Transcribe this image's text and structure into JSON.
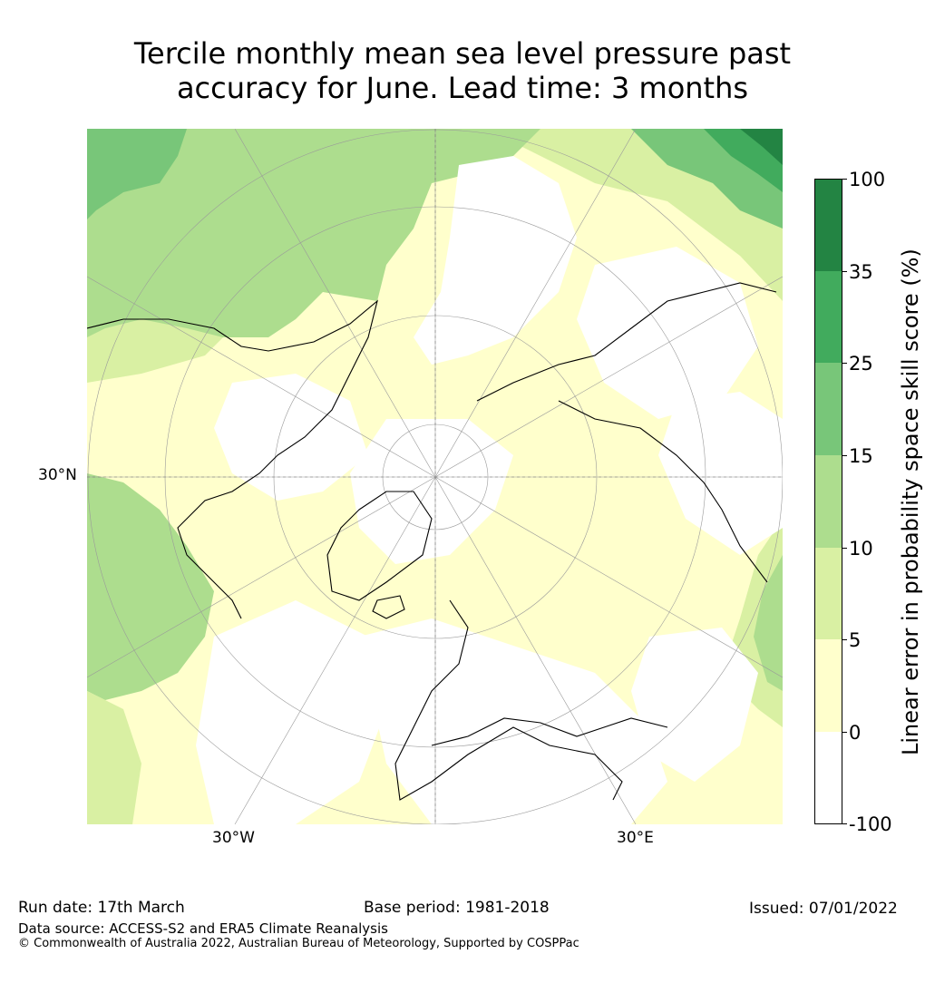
{
  "title": {
    "line1": "Tercile monthly mean sea level pressure past",
    "line2": "accuracy for June. Lead time: 3 months"
  },
  "map": {
    "projection": "north-polar-stereographic",
    "labels": {
      "lat_label": "30°N",
      "lon_west": "30°W",
      "lon_east": "30°E"
    }
  },
  "colorbar": {
    "label": "Linear error in probability space skill score (%)",
    "ticks": [
      "-100",
      "0",
      "5",
      "10",
      "15",
      "25",
      "35",
      "100"
    ],
    "bins": [
      {
        "range": "-100 to 0",
        "color": "#ffffff"
      },
      {
        "range": "0 to 5",
        "color": "#ffffcc"
      },
      {
        "range": "5 to 10",
        "color": "#d9f0a3"
      },
      {
        "range": "10 to 15",
        "color": "#addd8e"
      },
      {
        "range": "15 to 25",
        "color": "#78c679"
      },
      {
        "range": "25 to 35",
        "color": "#41ab5d"
      },
      {
        "range": "35 to 100",
        "color": "#238443"
      }
    ]
  },
  "footer": {
    "run_date": "Run date: 17th March",
    "base_period": "Base period: 1981-2018",
    "issued": "Issued: 07/01/2022",
    "data_source": "Data source: ACCESS-S2 and ERA5 Climate Reanalysis",
    "copyright": "© Commonwealth of Australia 2022, Australian Bureau of Meteorology, Supported by COSPPac"
  }
}
